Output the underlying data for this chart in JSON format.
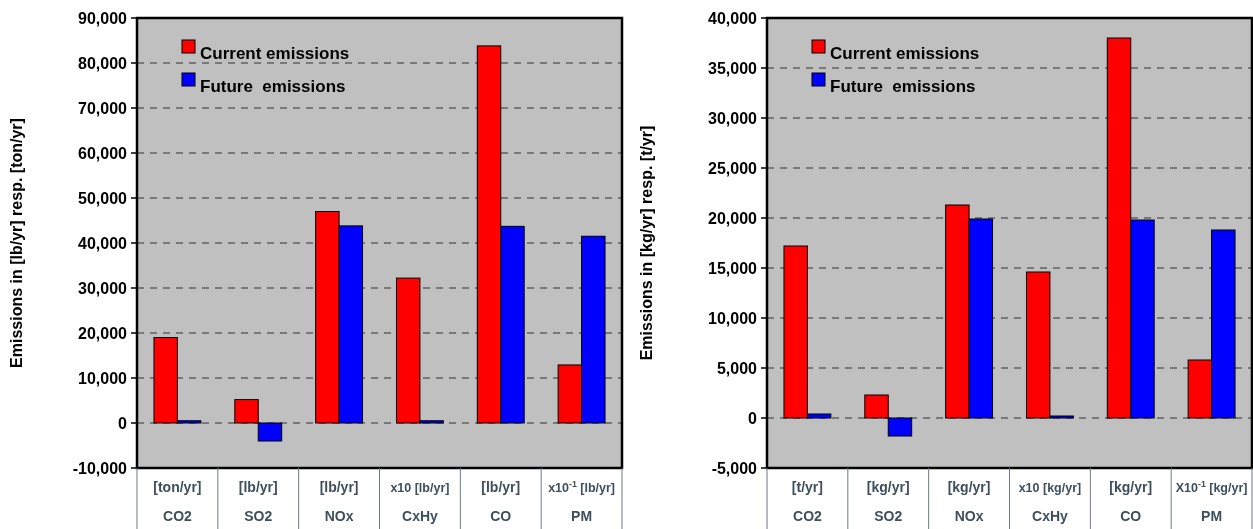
{
  "chart_data": [
    {
      "type": "bar",
      "ylabel": "Emissions in [lb/yr] resp. [ton/yr]",
      "categories": [
        "[ton/yr]\nCO2",
        "[lb/yr]\nSO2",
        "[lb/yr]\nNOx",
        "x10 [lb/yr]\nCxHy",
        "[lb/yr]\nCO",
        "x10$^{-1}$ [lb/yr]\nPM"
      ],
      "series": [
        {
          "name": "Current emissions",
          "color": "#ff0000",
          "values": [
            19000,
            5200,
            47000,
            32200,
            83800,
            12900
          ]
        },
        {
          "name": "Future  emissions",
          "color": "#0000ff",
          "values": [
            500,
            -4000,
            43800,
            500,
            43700,
            41500
          ]
        }
      ],
      "ylim": [
        -10000,
        90000
      ],
      "yticks": [
        {
          "value": -10000,
          "label": "-10,000"
        },
        0,
        {
          "value": 10000,
          "label": "10,000"
        },
        {
          "value": 20000,
          "label": "20,000"
        },
        {
          "value": 30000,
          "label": "30,000"
        },
        {
          "value": 40000,
          "label": "40,000"
        },
        {
          "value": 50000,
          "label": "50,000"
        },
        {
          "value": 60000,
          "label": "60,000"
        },
        {
          "value": 70000,
          "label": "70,000"
        },
        {
          "value": 80000,
          "label": "80,000"
        },
        {
          "value": 90000,
          "label": "90,000"
        }
      ],
      "grid": "y",
      "legend": "top left"
    },
    {
      "type": "bar",
      "ylabel": "Emissions in [kg/yr] resp. [t/yr]",
      "categories": [
        "[t/yr]\nCO2",
        "[kg/yr]\nSO2",
        "[kg/yr]\nNOx",
        "x10 [kg/yr]\nCxHy",
        "[kg/yr]\nCO",
        "X10$^{-1}$ [kg/yr]\nPM"
      ],
      "series": [
        {
          "name": "Current emissions",
          "color": "#ff0000",
          "values": [
            17200,
            2300,
            21300,
            14600,
            38000,
            5800
          ]
        },
        {
          "name": "Future  emissions",
          "color": "#0000ff",
          "values": [
            400,
            -1800,
            19900,
            200,
            19800,
            18800
          ]
        }
      ],
      "ylim": [
        -5000,
        40000
      ],
      "yticks": [
        {
          "value": -5000,
          "label": "-5,000"
        },
        0,
        {
          "value": 5000,
          "label": "5,000"
        },
        {
          "value": 10000,
          "label": "10,000"
        },
        {
          "value": 15000,
          "label": "15,000"
        },
        {
          "value": 20000,
          "label": "20,000"
        },
        {
          "value": 25000,
          "label": "25,000"
        },
        {
          "value": 30000,
          "label": "30,000"
        },
        {
          "value": 35000,
          "label": "35,000"
        },
        {
          "value": 40000,
          "label": "40,000"
        }
      ],
      "grid": "y",
      "legend": "top left"
    }
  ]
}
